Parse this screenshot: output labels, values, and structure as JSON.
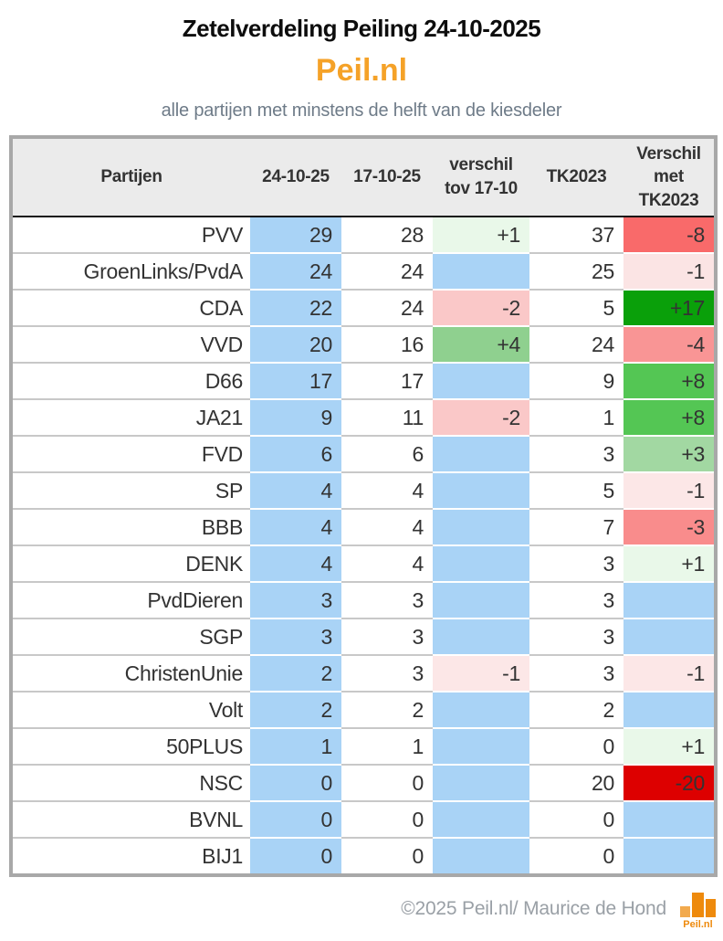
{
  "page": {
    "title": "Zetelverdeling Peiling 24-10-2025",
    "brand": "Peil.nl",
    "subtitle": "alle partijen met minstens de helft van de kiesdeler"
  },
  "chart_data": {
    "type": "table",
    "title": "Zetelverdeling Peiling 24-10-2025",
    "columns": [
      "Partijen",
      "24-10-25",
      "17-10-25",
      "verschil\ntov 17-10",
      "TK2023",
      "Verschil\nmet\nTK2023"
    ],
    "highlight_blue": "#a9d3f6",
    "rows": [
      {
        "party": "PVV",
        "now": "29",
        "prev": "28",
        "diff_prev": "+1",
        "diff_prev_bg": "#e9f8e9",
        "tk2023": "37",
        "diff_tk": "-8",
        "diff_tk_bg": "#f96a6a"
      },
      {
        "party": "GroenLinks/PvdA",
        "now": "24",
        "prev": "24",
        "diff_prev": "",
        "diff_prev_bg": "#a9d3f6",
        "tk2023": "25",
        "diff_tk": "-1",
        "diff_tk_bg": "#fbe4e4"
      },
      {
        "party": "CDA",
        "now": "22",
        "prev": "24",
        "diff_prev": "-2",
        "diff_prev_bg": "#fac8c8",
        "tk2023": "5",
        "diff_tk": "+17",
        "diff_tk_bg": "#0aa00a"
      },
      {
        "party": "VVD",
        "now": "20",
        "prev": "16",
        "diff_prev": "+4",
        "diff_prev_bg": "#8fd08f",
        "tk2023": "24",
        "diff_tk": "-4",
        "diff_tk_bg": "#f99595"
      },
      {
        "party": "D66",
        "now": "17",
        "prev": "17",
        "diff_prev": "",
        "diff_prev_bg": "#a9d3f6",
        "tk2023": "9",
        "diff_tk": "+8",
        "diff_tk_bg": "#54c654"
      },
      {
        "party": "JA21",
        "now": "9",
        "prev": "11",
        "diff_prev": "-2",
        "diff_prev_bg": "#fac8c8",
        "tk2023": "1",
        "diff_tk": "+8",
        "diff_tk_bg": "#54c654"
      },
      {
        "party": "FVD",
        "now": "6",
        "prev": "6",
        "diff_prev": "",
        "diff_prev_bg": "#a9d3f6",
        "tk2023": "3",
        "diff_tk": "+3",
        "diff_tk_bg": "#a2d8a2"
      },
      {
        "party": "SP",
        "now": "4",
        "prev": "4",
        "diff_prev": "",
        "diff_prev_bg": "#a9d3f6",
        "tk2023": "5",
        "diff_tk": "-1",
        "diff_tk_bg": "#fce7e7"
      },
      {
        "party": "BBB",
        "now": "4",
        "prev": "4",
        "diff_prev": "",
        "diff_prev_bg": "#a9d3f6",
        "tk2023": "7",
        "diff_tk": "-3",
        "diff_tk_bg": "#f98c8c"
      },
      {
        "party": "DENK",
        "now": "4",
        "prev": "4",
        "diff_prev": "",
        "diff_prev_bg": "#a9d3f6",
        "tk2023": "3",
        "diff_tk": "+1",
        "diff_tk_bg": "#e9f8e9"
      },
      {
        "party": "PvdDieren",
        "now": "3",
        "prev": "3",
        "diff_prev": "",
        "diff_prev_bg": "#a9d3f6",
        "tk2023": "3",
        "diff_tk": "",
        "diff_tk_bg": "#a9d3f6"
      },
      {
        "party": "SGP",
        "now": "3",
        "prev": "3",
        "diff_prev": "",
        "diff_prev_bg": "#a9d3f6",
        "tk2023": "3",
        "diff_tk": "",
        "diff_tk_bg": "#a9d3f6"
      },
      {
        "party": "ChristenUnie",
        "now": "2",
        "prev": "3",
        "diff_prev": "-1",
        "diff_prev_bg": "#fce7e7",
        "tk2023": "3",
        "diff_tk": "-1",
        "diff_tk_bg": "#fce7e7"
      },
      {
        "party": "Volt",
        "now": "2",
        "prev": "2",
        "diff_prev": "",
        "diff_prev_bg": "#a9d3f6",
        "tk2023": "2",
        "diff_tk": "",
        "diff_tk_bg": "#a9d3f6"
      },
      {
        "party": "50PLUS",
        "now": "1",
        "prev": "1",
        "diff_prev": "",
        "diff_prev_bg": "#a9d3f6",
        "tk2023": "0",
        "diff_tk": "+1",
        "diff_tk_bg": "#e9f8e9"
      },
      {
        "party": "NSC",
        "now": "0",
        "prev": "0",
        "diff_prev": "",
        "diff_prev_bg": "#a9d3f6",
        "tk2023": "20",
        "diff_tk": "-20",
        "diff_tk_bg": "#dd0000"
      },
      {
        "party": "BVNL",
        "now": "0",
        "prev": "0",
        "diff_prev": "",
        "diff_prev_bg": "#a9d3f6",
        "tk2023": "0",
        "diff_tk": "",
        "diff_tk_bg": "#a9d3f6"
      },
      {
        "party": "BIJ1",
        "now": "0",
        "prev": "0",
        "diff_prev": "",
        "diff_prev_bg": "#a9d3f6",
        "tk2023": "0",
        "diff_tk": "",
        "diff_tk_bg": "#a9d3f6"
      }
    ]
  },
  "footer": {
    "copyright": "©2025 Peil.nl/ Maurice de Hond",
    "logo_label": "Peil.nl"
  },
  "colors": {
    "brand_orange": "#f5a228",
    "logo_orange": "#ee8a0d",
    "logo_orange_light": "#f2aa4e",
    "header_bg": "#ebebeb",
    "table_border": "#a8a8a8",
    "row_line": "#c8c8c8",
    "text_dark": "#333333",
    "subtitle_gray": "#6e7b88",
    "footer_gray": "#9aa0a6"
  }
}
